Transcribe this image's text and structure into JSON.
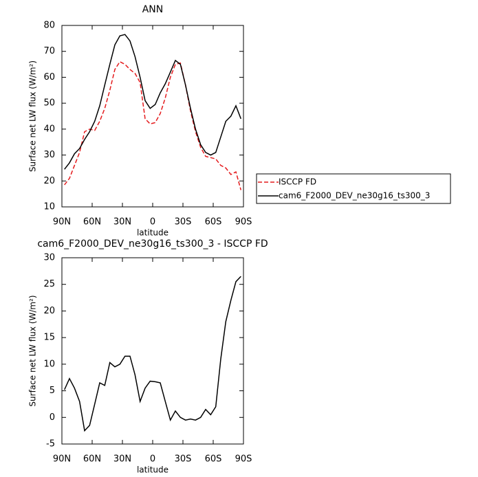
{
  "chart_data": [
    {
      "type": "line",
      "title": "ANN",
      "xlabel": "latitude",
      "ylabel": "Surface net LW flux (W/m²)",
      "x": [
        87.5,
        82.5,
        77.5,
        72.5,
        67.5,
        62.5,
        57.5,
        52.5,
        47.5,
        42.5,
        37.5,
        32.5,
        27.5,
        22.5,
        17.5,
        12.5,
        7.5,
        2.5,
        -2.5,
        -7.5,
        -12.5,
        -17.5,
        -22.5,
        -27.5,
        -32.5,
        -37.5,
        -42.5,
        -47.5,
        -52.5,
        -57.5,
        -62.5,
        -67.5,
        -72.5,
        -77.5,
        -82.5,
        -87.5
      ],
      "series": [
        {
          "name": "ISCCP FD",
          "color": "#e41a1c",
          "dash": true,
          "values": [
            18.5,
            21,
            26,
            31,
            39,
            40,
            39.5,
            43,
            48,
            55,
            63,
            66,
            65,
            63,
            61.5,
            58,
            44,
            42,
            42.5,
            46,
            52,
            60,
            65,
            65.5,
            57,
            47,
            39,
            33,
            29.5,
            29,
            28.5,
            26,
            25,
            22.5,
            23.5,
            16.5
          ]
        },
        {
          "name": "cam6_F2000_DEV_ne30g16_ts300_3",
          "color": "#000000",
          "dash": false,
          "values": [
            24.5,
            27,
            30.5,
            32.5,
            36,
            39,
            43,
            49,
            57,
            65,
            72.5,
            76,
            76.5,
            74,
            68,
            60,
            51,
            48,
            49.5,
            54,
            57.5,
            62,
            66.5,
            65,
            57,
            48,
            40,
            34,
            31,
            30,
            31,
            37,
            43,
            45,
            49,
            44
          ]
        }
      ],
      "xlim": [
        90,
        -90
      ],
      "xticks": [
        {
          "value": 90,
          "label": "90N"
        },
        {
          "value": 60,
          "label": "60N"
        },
        {
          "value": 30,
          "label": "30N"
        },
        0,
        {
          "value": -30,
          "label": "30S"
        },
        {
          "value": -60,
          "label": "60S"
        },
        {
          "value": -90,
          "label": "90S"
        }
      ],
      "ylim": [
        10,
        80
      ],
      "yticks": [
        10,
        20,
        30,
        40,
        50,
        60,
        70,
        80
      ],
      "legend": "right"
    },
    {
      "type": "line",
      "title": "cam6_F2000_DEV_ne30g16_ts300_3 - ISCCP FD",
      "xlabel": "latitude",
      "ylabel": "Surface net LW flux (W/m²)",
      "x": [
        87.5,
        82.5,
        77.5,
        72.5,
        67.5,
        62.5,
        57.5,
        52.5,
        47.5,
        42.5,
        37.5,
        32.5,
        27.5,
        22.5,
        17.5,
        12.5,
        7.5,
        2.5,
        -2.5,
        -7.5,
        -12.5,
        -17.5,
        -22.5,
        -27.5,
        -32.5,
        -37.5,
        -42.5,
        -47.5,
        -52.5,
        -57.5,
        -62.5,
        -67.5,
        -72.5,
        -77.5,
        -82.5,
        -87.5
      ],
      "values": [
        5.2,
        7.3,
        5.5,
        3,
        -2.5,
        -1.5,
        2.5,
        6.5,
        6,
        10.3,
        9.5,
        10,
        11.5,
        11.5,
        8,
        3,
        5.5,
        6.8,
        6.7,
        6.5,
        3,
        -0.5,
        1.2,
        0,
        -0.5,
        -0.3,
        -0.5,
        0,
        1.5,
        0.5,
        2,
        11,
        18,
        22,
        25.5,
        26.5
      ],
      "color": "#000000",
      "xlim": [
        90,
        -90
      ],
      "xticks": [
        {
          "value": 90,
          "label": "90N"
        },
        {
          "value": 60,
          "label": "60N"
        },
        {
          "value": 30,
          "label": "30N"
        },
        0,
        {
          "value": -30,
          "label": "30S"
        },
        {
          "value": -60,
          "label": "60S"
        },
        {
          "value": -90,
          "label": "90S"
        }
      ],
      "ylim": [
        -5,
        30
      ],
      "yticks": [
        -5,
        0,
        5,
        10,
        15,
        20,
        25,
        30
      ]
    }
  ]
}
